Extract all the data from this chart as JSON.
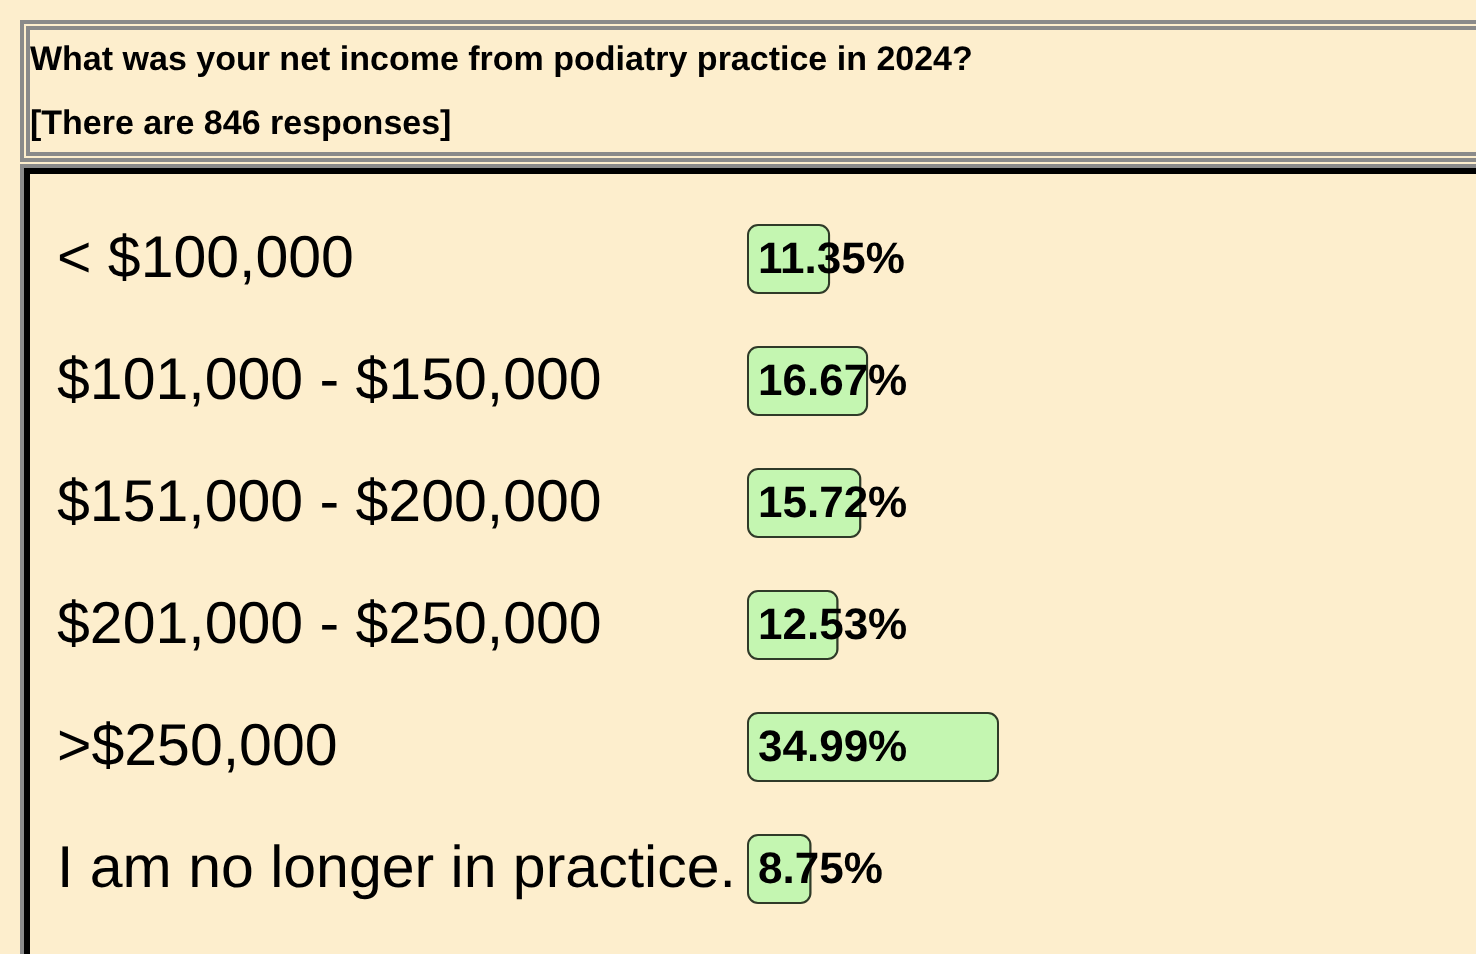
{
  "chart_data": {
    "type": "bar",
    "orientation": "horizontal",
    "title": "What was your net income from podiatry practice in 2024?",
    "subtitle": "[There are 846 responses]",
    "categories": [
      "< $100,000",
      "$101,000 - $150,000",
      "$151,000 - $200,000",
      "$201,000 - $250,000",
      ">$250,000",
      "I am no longer in practice."
    ],
    "values": [
      11.35,
      16.67,
      15.72,
      12.53,
      34.99,
      8.75
    ],
    "value_labels": [
      "11.35%",
      "16.67%",
      "15.72%",
      "12.53%",
      "34.99%",
      "8.75%"
    ],
    "color": "#c4f6b1",
    "tick_labels": "y"
  }
}
